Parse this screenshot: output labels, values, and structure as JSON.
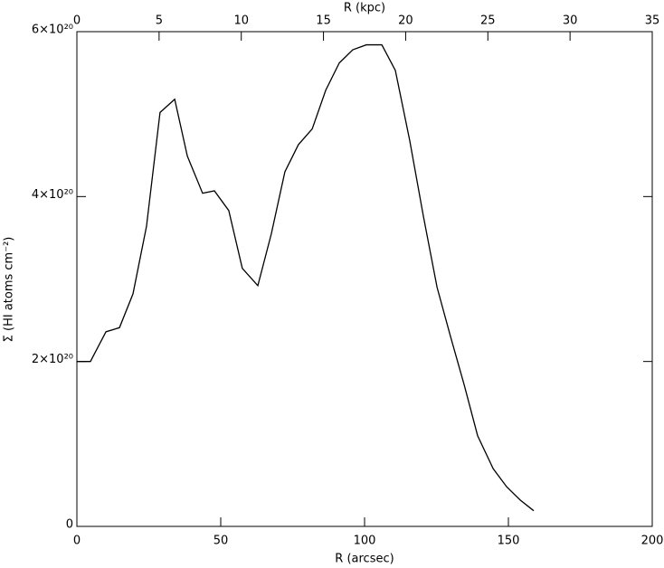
{
  "chart_data": {
    "type": "line",
    "xlabel": "R (arcsec)",
    "x2label": "R (kpc)",
    "ylabel": "Σ (HI atoms cm⁻²)",
    "x": [
      0,
      4.7,
      10.1,
      14.8,
      19.5,
      24.2,
      28.9,
      34.0,
      38.4,
      43.7,
      47.8,
      52.8,
      57.5,
      62.9,
      67.6,
      72.3,
      77.0,
      81.8,
      86.5,
      91.2,
      95.9,
      100.6,
      106.0,
      110.7,
      115.7,
      120.4,
      125.2,
      129.9,
      134.6,
      139.3,
      144.7,
      149.4,
      154.1,
      158.8
    ],
    "values": [
      2e+20,
      2e+20,
      2.36e+20,
      2.41e+20,
      2.82e+20,
      3.64e+20,
      5.02e+20,
      5.18e+20,
      4.49e+20,
      4.04e+20,
      4.07e+20,
      3.83e+20,
      3.13e+20,
      2.92e+20,
      3.55e+20,
      4.3e+20,
      4.63e+20,
      4.82e+20,
      5.29e+20,
      5.62e+20,
      5.78e+20,
      5.84e+20,
      5.84e+20,
      5.53e+20,
      4.68e+20,
      3.77e+20,
      2.9e+20,
      2.3e+20,
      1.72e+20,
      1.1e+20,
      7e+19,
      4.8e+19,
      3.2e+19,
      1.9e+19
    ],
    "color": "#000000",
    "xlim": [
      0,
      200
    ],
    "xticks": [
      0,
      50,
      100,
      150,
      200
    ],
    "x2lim": [
      0,
      35
    ],
    "x2ticks": [
      0,
      5,
      10,
      15,
      20,
      25,
      30,
      35
    ],
    "ylim": [
      0,
      6e+20
    ],
    "yticks": [
      0,
      {
        "value": 2e+20,
        "label": "2×10²⁰"
      },
      {
        "value": 4e+20,
        "label": "4×10²⁰"
      },
      {
        "value": 6e+20,
        "label": "6×10²⁰"
      }
    ],
    "grid": false
  }
}
